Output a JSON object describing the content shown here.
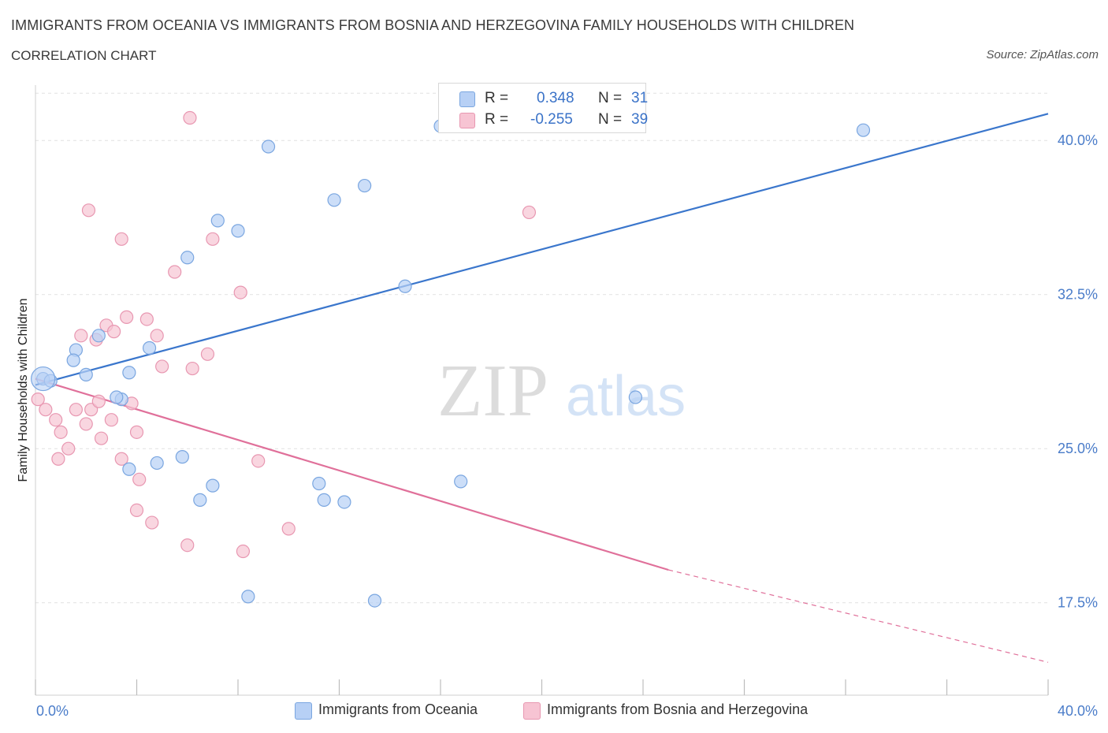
{
  "header": {
    "title": "IMMIGRANTS FROM OCEANIA VS IMMIGRANTS FROM BOSNIA AND HERZEGOVINA FAMILY HOUSEHOLDS WITH CHILDREN",
    "subtitle": "CORRELATION CHART",
    "source": "Source: ZipAtlas.com"
  },
  "watermark": {
    "zip": "ZIP",
    "atlas": "atlas"
  },
  "legend": {
    "r_label": "R =",
    "n_label": "N =",
    "rows": [
      {
        "r": "0.348",
        "n": "31"
      },
      {
        "r": "-0.255",
        "n": "39"
      }
    ]
  },
  "colors": {
    "oceania_fill": "#b7d0f5",
    "oceania_stroke": "#7aa6e0",
    "oceania_line": "#3a76cc",
    "bosnia_fill": "#f7c4d3",
    "bosnia_stroke": "#e897b1",
    "bosnia_line": "#e0709a",
    "tick_text": "#4a7cc9",
    "grid": "#e1e1e1"
  },
  "chart_data": {
    "type": "scatter",
    "xlabel": "",
    "ylabel": "Family Households with Children",
    "xlim": [
      0,
      40
    ],
    "ylim": [
      13.0,
      43.0
    ],
    "x_tick_labels": [
      "0.0%",
      "40.0%"
    ],
    "y_ticks": [
      17.5,
      25.0,
      32.5,
      40.0
    ],
    "y_tick_labels": [
      "17.5%",
      "25.0%",
      "32.5%",
      "40.0%"
    ],
    "grid": true,
    "legend_position": "top-center",
    "series": [
      {
        "name": "Immigrants from Oceania",
        "color": "#b7d0f5",
        "points": [
          [
            0.3,
            28.4
          ],
          [
            0.6,
            28.3
          ],
          [
            1.6,
            29.8
          ],
          [
            1.5,
            29.3
          ],
          [
            2.0,
            28.6
          ],
          [
            2.5,
            30.5
          ],
          [
            3.7,
            28.7
          ],
          [
            4.5,
            29.9
          ],
          [
            3.4,
            27.4
          ],
          [
            3.2,
            27.5
          ],
          [
            6.0,
            34.3
          ],
          [
            7.2,
            36.1
          ],
          [
            8.0,
            35.6
          ],
          [
            9.2,
            39.7
          ],
          [
            11.8,
            37.1
          ],
          [
            13.0,
            37.8
          ],
          [
            16.0,
            40.7
          ],
          [
            14.6,
            32.9
          ],
          [
            11.2,
            23.3
          ],
          [
            16.8,
            23.4
          ],
          [
            11.4,
            22.5
          ],
          [
            12.2,
            22.4
          ],
          [
            13.4,
            17.6
          ],
          [
            8.4,
            17.8
          ],
          [
            5.8,
            24.6
          ],
          [
            6.5,
            22.5
          ],
          [
            7.0,
            23.2
          ],
          [
            3.7,
            24.0
          ],
          [
            4.8,
            24.3
          ],
          [
            23.7,
            27.5
          ],
          [
            32.7,
            40.5
          ]
        ],
        "trend": {
          "x0": 0.0,
          "y0": 28.1,
          "x1": 40.0,
          "y1": 41.3
        }
      },
      {
        "name": "Immigrants from Bosnia and Herzegovina",
        "color": "#f7c4d3",
        "points": [
          [
            0.1,
            27.4
          ],
          [
            0.4,
            26.9
          ],
          [
            0.8,
            26.4
          ],
          [
            1.0,
            25.8
          ],
          [
            1.6,
            26.9
          ],
          [
            0.9,
            24.5
          ],
          [
            1.3,
            25.0
          ],
          [
            2.0,
            26.2
          ],
          [
            2.2,
            26.9
          ],
          [
            2.6,
            25.5
          ],
          [
            2.5,
            27.3
          ],
          [
            3.0,
            26.4
          ],
          [
            3.4,
            24.5
          ],
          [
            3.8,
            27.2
          ],
          [
            4.0,
            25.8
          ],
          [
            2.4,
            30.3
          ],
          [
            1.8,
            30.5
          ],
          [
            2.8,
            31.0
          ],
          [
            3.1,
            30.7
          ],
          [
            3.6,
            31.4
          ],
          [
            4.4,
            31.3
          ],
          [
            5.0,
            29.0
          ],
          [
            4.8,
            30.5
          ],
          [
            6.2,
            28.9
          ],
          [
            6.8,
            29.6
          ],
          [
            2.1,
            36.6
          ],
          [
            3.4,
            35.2
          ],
          [
            6.1,
            41.1
          ],
          [
            7.0,
            35.2
          ],
          [
            8.1,
            32.6
          ],
          [
            5.5,
            33.6
          ],
          [
            4.1,
            23.5
          ],
          [
            4.0,
            22.0
          ],
          [
            4.6,
            21.4
          ],
          [
            6.0,
            20.3
          ],
          [
            8.2,
            20.0
          ],
          [
            10.0,
            21.1
          ],
          [
            8.8,
            24.4
          ],
          [
            19.5,
            36.5
          ]
        ],
        "trend": {
          "x0": 0.0,
          "y0": 28.4,
          "x1": 25.0,
          "y1": 19.1,
          "dash_to_x": 40.0,
          "dash_to_y": 14.6
        }
      }
    ]
  },
  "bottom_legend": [
    {
      "label": "Immigrants from Oceania"
    },
    {
      "label": "Immigrants from Bosnia and Herzegovina"
    }
  ]
}
